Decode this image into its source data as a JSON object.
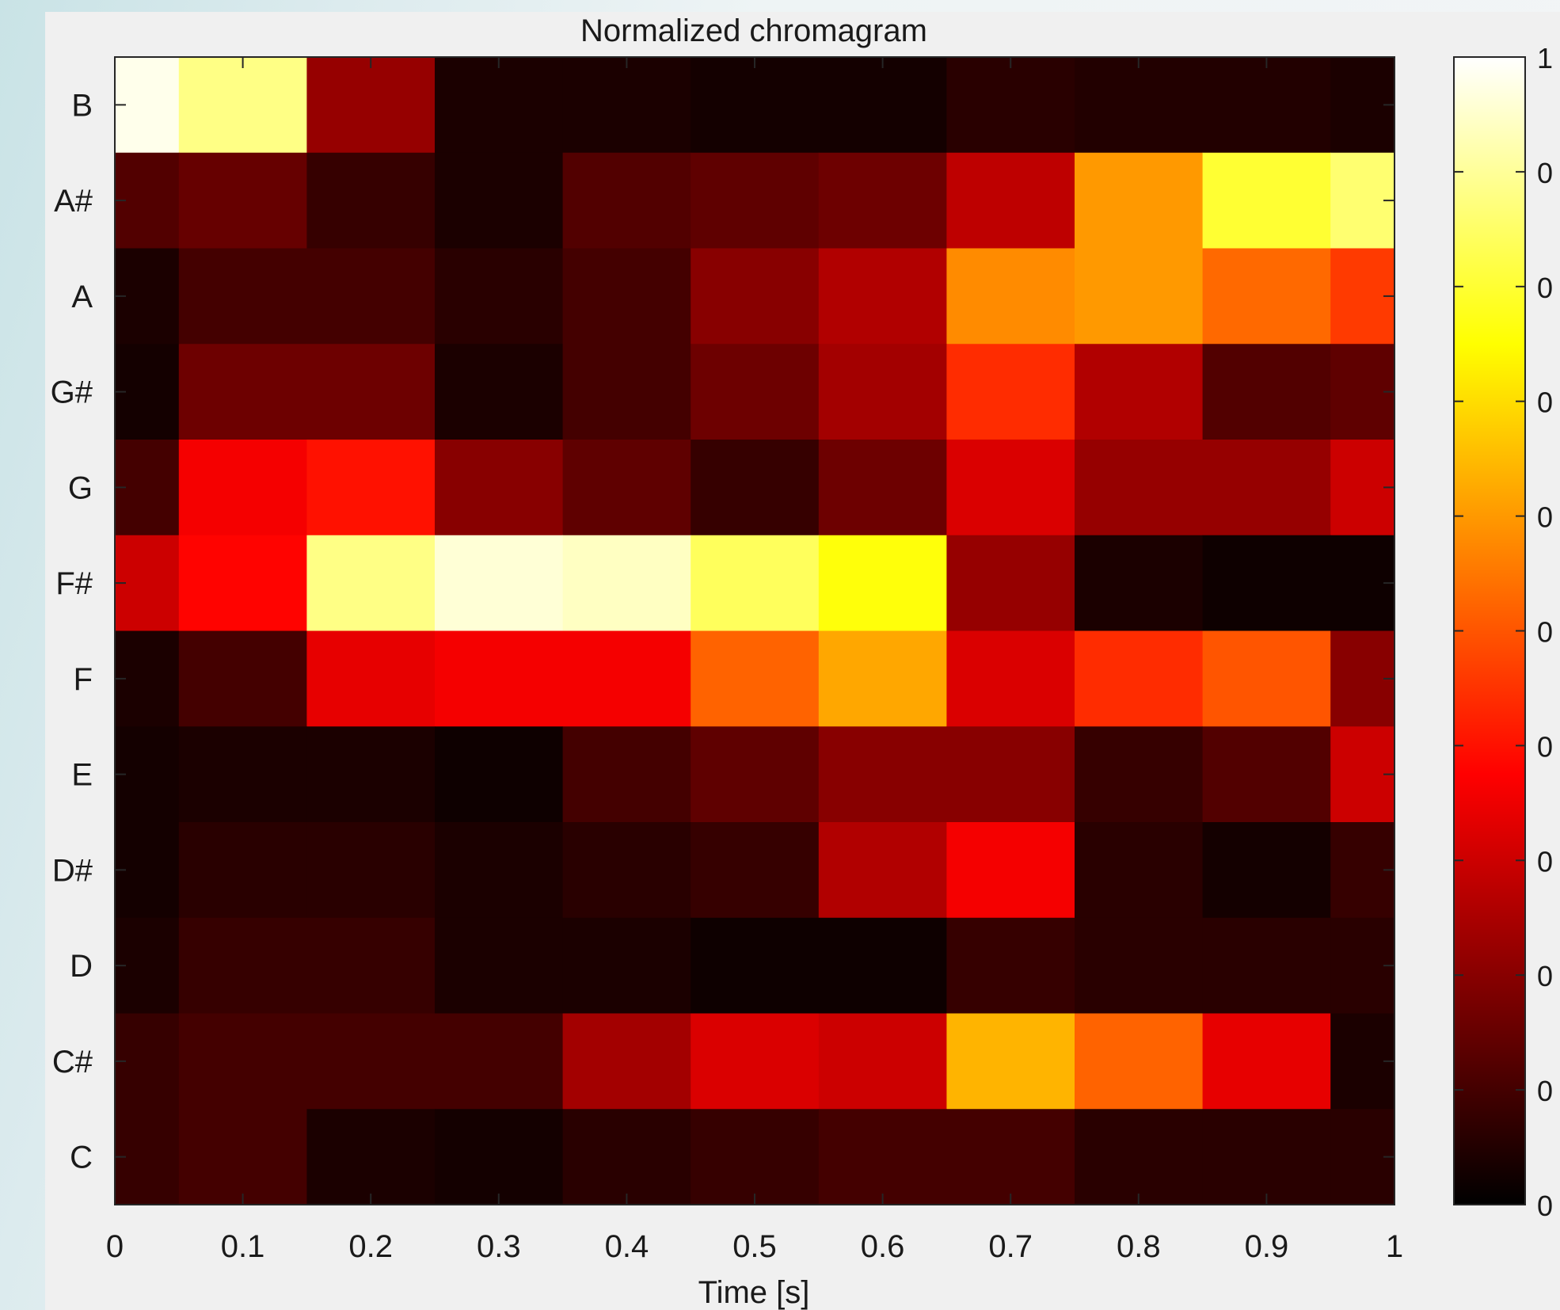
{
  "chart_data": {
    "type": "heatmap",
    "title": "Normalized chromagram",
    "xlabel": "Time [s]",
    "ylabel": "",
    "x_ticks": [
      "0",
      "0.1",
      "0.2",
      "0.3",
      "0.4",
      "0.5",
      "0.6",
      "0.7",
      "0.8",
      "0.9",
      "1"
    ],
    "xlim": [
      0,
      1
    ],
    "x_centers": [
      0,
      0.1,
      0.2,
      0.3,
      0.4,
      0.5,
      0.6,
      0.7,
      0.8,
      0.9,
      1.0
    ],
    "rows": [
      "B",
      "A#",
      "A",
      "G#",
      "G",
      "F#",
      "F",
      "E",
      "D#",
      "D",
      "C#",
      "C"
    ],
    "values": [
      [
        0.98,
        0.88,
        0.22,
        0.04,
        0.04,
        0.03,
        0.03,
        0.06,
        0.05,
        0.05,
        0.04
      ],
      [
        0.12,
        0.15,
        0.08,
        0.04,
        0.12,
        0.14,
        0.16,
        0.28,
        0.6,
        0.8,
        0.86
      ],
      [
        0.04,
        0.1,
        0.1,
        0.06,
        0.1,
        0.2,
        0.26,
        0.58,
        0.6,
        0.53,
        0.46
      ],
      [
        0.03,
        0.16,
        0.16,
        0.04,
        0.1,
        0.16,
        0.24,
        0.44,
        0.26,
        0.12,
        0.14
      ],
      [
        0.1,
        0.36,
        0.4,
        0.2,
        0.14,
        0.08,
        0.16,
        0.32,
        0.22,
        0.22,
        0.3
      ],
      [
        0.3,
        0.38,
        0.88,
        0.96,
        0.94,
        0.84,
        0.76,
        0.22,
        0.04,
        0.02,
        0.02
      ],
      [
        0.04,
        0.1,
        0.34,
        0.36,
        0.36,
        0.52,
        0.62,
        0.32,
        0.44,
        0.5,
        0.2
      ],
      [
        0.03,
        0.04,
        0.04,
        0.02,
        0.1,
        0.14,
        0.2,
        0.2,
        0.08,
        0.12,
        0.3
      ],
      [
        0.03,
        0.06,
        0.06,
        0.04,
        0.06,
        0.08,
        0.26,
        0.36,
        0.06,
        0.03,
        0.08
      ],
      [
        0.04,
        0.08,
        0.08,
        0.04,
        0.04,
        0.02,
        0.02,
        0.08,
        0.06,
        0.06,
        0.06
      ],
      [
        0.08,
        0.1,
        0.1,
        0.1,
        0.24,
        0.32,
        0.3,
        0.64,
        0.52,
        0.34,
        0.04
      ],
      [
        0.08,
        0.1,
        0.04,
        0.03,
        0.06,
        0.08,
        0.1,
        0.1,
        0.06,
        0.06,
        0.06
      ]
    ],
    "colormap": "hot",
    "color_range": [
      0,
      1
    ],
    "colorbar_labels": [
      "1",
      "0",
      "0",
      "0",
      "0",
      "0",
      "0",
      "0",
      "0",
      "0",
      "0"
    ],
    "grid": false,
    "legend": "colorbar-right"
  }
}
